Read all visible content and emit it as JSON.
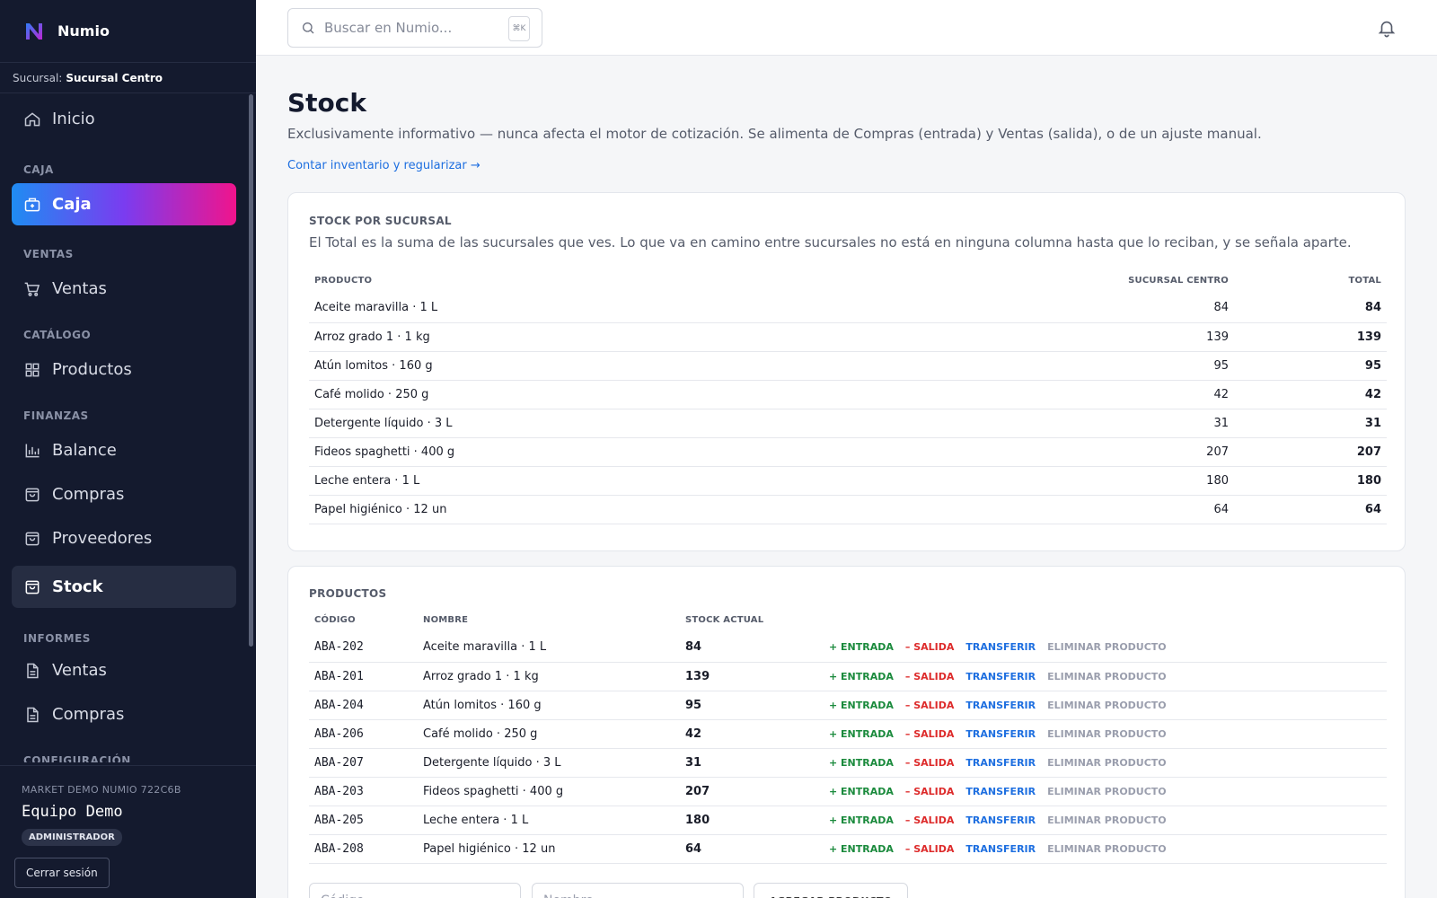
{
  "app": {
    "name": "Numio"
  },
  "branch": {
    "prefix": "Sucursal:",
    "name": "Sucursal Centro"
  },
  "nav": {
    "inicio": "Inicio",
    "caja_section": "CAJA",
    "caja": "Caja",
    "ventas_section": "VENTAS",
    "ventas": "Ventas",
    "catalogo_section": "CATÁLOGO",
    "productos": "Productos",
    "finanzas_section": "FINANZAS",
    "balance": "Balance",
    "compras": "Compras",
    "proveedores": "Proveedores",
    "stock": "Stock",
    "informes_section": "INFORMES",
    "informes_ventas": "Ventas",
    "informes_compras": "Compras",
    "config_section": "CONFIGURACIÓN"
  },
  "footer": {
    "org": "MARKET DEMO NUMIO 722C6B",
    "user": "Equipo Demo",
    "role": "ADMINISTRADOR",
    "logout": "Cerrar sesión"
  },
  "search": {
    "placeholder": "Buscar en Numio...",
    "shortcut": "⌘K"
  },
  "page": {
    "title": "Stock",
    "subtitle": "Exclusivamente informativo — nunca afecta el motor de cotización. Se alimenta de Compras (entrada) y Ventas (salida), o de un ajuste manual.",
    "link": "Contar inventario y regularizar →"
  },
  "stock_by_branch": {
    "title": "STOCK POR SUCURSAL",
    "description": "El Total es la suma de las sucursales que ves. Lo que va en camino entre sucursales no está en ninguna columna hasta que lo reciban, y se señala aparte.",
    "columns": [
      "PRODUCTO",
      "SUCURSAL CENTRO",
      "TOTAL"
    ],
    "rows": [
      {
        "product": "Aceite maravilla · 1 L",
        "centro": "84",
        "total": "84"
      },
      {
        "product": "Arroz grado 1 · 1 kg",
        "centro": "139",
        "total": "139"
      },
      {
        "product": "Atún lomitos · 160 g",
        "centro": "95",
        "total": "95"
      },
      {
        "product": "Café molido · 250 g",
        "centro": "42",
        "total": "42"
      },
      {
        "product": "Detergente líquido · 3 L",
        "centro": "31",
        "total": "31"
      },
      {
        "product": "Fideos spaghetti · 400 g",
        "centro": "207",
        "total": "207"
      },
      {
        "product": "Leche entera · 1 L",
        "centro": "180",
        "total": "180"
      },
      {
        "product": "Papel higiénico · 12 un",
        "centro": "64",
        "total": "64"
      }
    ]
  },
  "products": {
    "title": "PRODUCTOS",
    "columns": [
      "CÓDIGO",
      "NOMBRE",
      "STOCK ACTUAL"
    ],
    "actions": {
      "in": "+ ENTRADA",
      "out": "– SALIDA",
      "transfer": "TRANSFERIR",
      "delete": "ELIMINAR PRODUCTO"
    },
    "rows": [
      {
        "code": "ABA-202",
        "name": "Aceite maravilla · 1 L",
        "stock": "84"
      },
      {
        "code": "ABA-201",
        "name": "Arroz grado 1 · 1 kg",
        "stock": "139"
      },
      {
        "code": "ABA-204",
        "name": "Atún lomitos · 160 g",
        "stock": "95"
      },
      {
        "code": "ABA-206",
        "name": "Café molido · 250 g",
        "stock": "42"
      },
      {
        "code": "ABA-207",
        "name": "Detergente líquido · 3 L",
        "stock": "31"
      },
      {
        "code": "ABA-203",
        "name": "Fideos spaghetti · 400 g",
        "stock": "207"
      },
      {
        "code": "ABA-205",
        "name": "Leche entera · 1 L",
        "stock": "180"
      },
      {
        "code": "ABA-208",
        "name": "Papel higiénico · 12 un",
        "stock": "64"
      }
    ],
    "add": {
      "code_placeholder": "Código",
      "name_placeholder": "Nombre",
      "button": "AGREGAR PRODUCTO"
    }
  },
  "colors": {
    "sidebar_bg": "#141a2e",
    "accent_blue": "#1e6fe0",
    "entrada": "#1a8a3c",
    "salida": "#dd2a2a"
  }
}
